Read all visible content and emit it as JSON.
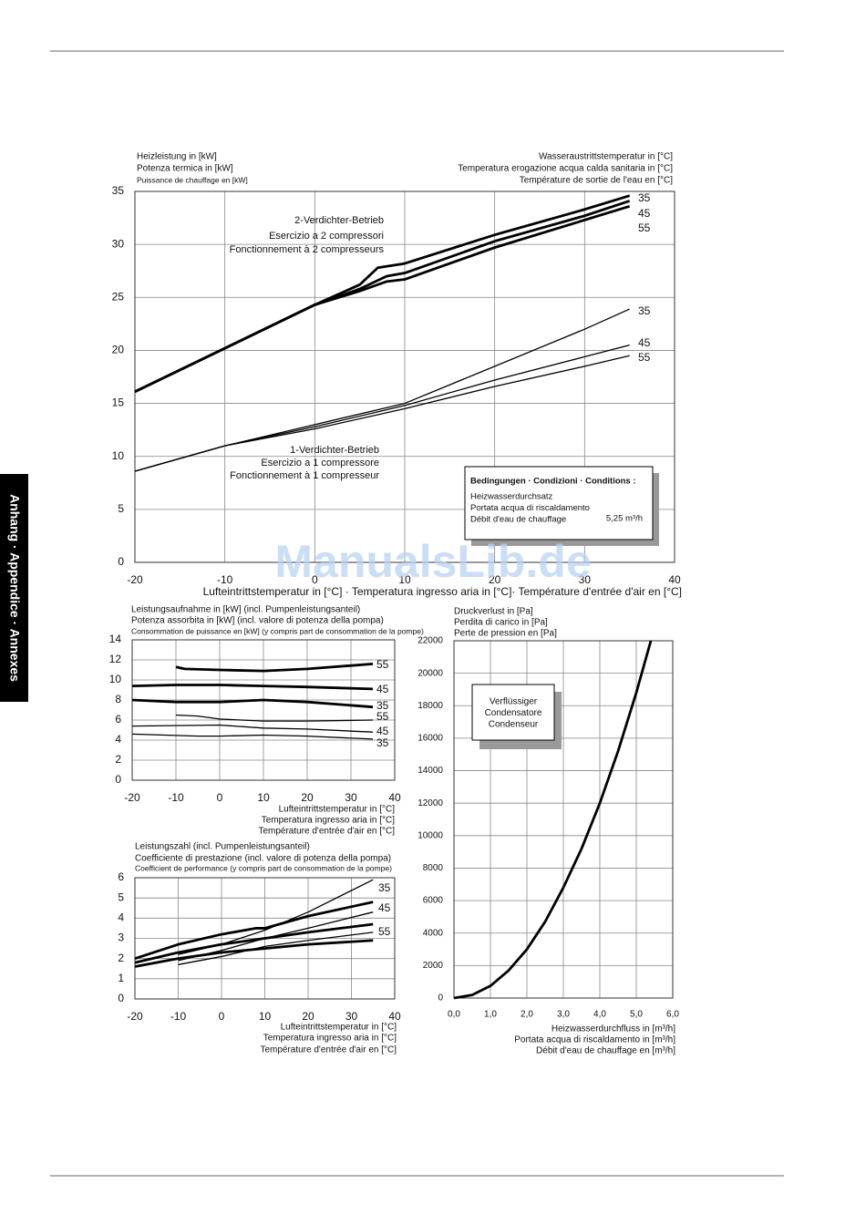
{
  "side_tab": "Anhang · Appendice · Annexes",
  "watermark": "ManualsLib.de",
  "chart_data": [
    {
      "type": "line",
      "y_label": [
        "Heizleistung in [kW]",
        "Potenza termica in [kW]",
        "Puissance de chauffage en [kW]"
      ],
      "legend_title": [
        "Wasseraustrittstemperatur in [°C]",
        "Temperatura erogazione acqua calda sanitaria in [°C]",
        "Température de sortie de l'eau en [°C]"
      ],
      "x_label": [
        "Lufteintrittstemperatur in [°C] · Temperatura ingresso aria in [°C]· Température d'entrée d'air en [°C]"
      ],
      "annotations": [
        [
          "2-Verdichter-Betrieb",
          "Esercizio a 2 compressori",
          "Fonctionnement à 2 compresseurs"
        ],
        [
          "1-Verdichter-Betrieb",
          "Esercizio a 1 compressore",
          "Fonctionnement à 1 compresseur"
        ]
      ],
      "conditions": {
        "title": "Bedingungen · Condizioni · Conditions :",
        "lines": [
          "Heizwasserdurchsatz",
          " Portata acqua di riscaldamento",
          "Débit d'eau de chauffage"
        ],
        "value": "5,25 m³/h"
      },
      "xlim": [
        -20,
        40
      ],
      "xticks": [
        -20,
        -10,
        0,
        10,
        20,
        30,
        40
      ],
      "ylim": [
        0,
        35
      ],
      "yticks": [
        0,
        5,
        10,
        15,
        20,
        25,
        30,
        35
      ],
      "grid": true,
      "series": [
        {
          "name": "35",
          "line_width": 2.8,
          "x": [
            -20,
            -10,
            0,
            5,
            7,
            10,
            20,
            30,
            35
          ],
          "values": [
            16.1,
            20.2,
            24.3,
            26.2,
            27.8,
            28.2,
            30.9,
            33.3,
            34.6
          ]
        },
        {
          "name": "45",
          "line_width": 2.8,
          "x": [
            -20,
            -10,
            0,
            5,
            8,
            10,
            20,
            30,
            35
          ],
          "values": [
            16.1,
            20.2,
            24.3,
            25.8,
            27.0,
            27.3,
            30.3,
            32.7,
            34.1
          ]
        },
        {
          "name": "55",
          "line_width": 2.8,
          "x": [
            -20,
            -10,
            0,
            5,
            8,
            10,
            20,
            30,
            35
          ],
          "values": [
            16.1,
            20.2,
            24.3,
            25.6,
            26.5,
            26.7,
            29.7,
            32.3,
            33.6
          ]
        },
        {
          "name": "35",
          "line_width": 1.3,
          "x": [
            -20,
            -10,
            0,
            10,
            20,
            30,
            35
          ],
          "values": [
            8.6,
            11.0,
            13.0,
            15.0,
            18.5,
            22.0,
            23.9
          ]
        },
        {
          "name": "45",
          "line_width": 1.3,
          "x": [
            -20,
            -10,
            0,
            10,
            20,
            30,
            35
          ],
          "values": [
            8.6,
            11.0,
            12.8,
            14.8,
            17.2,
            19.4,
            20.5
          ]
        },
        {
          "name": "55",
          "line_width": 1.3,
          "x": [
            -20,
            -10,
            0,
            10,
            20,
            30,
            35
          ],
          "values": [
            8.6,
            11.0,
            12.6,
            14.5,
            16.6,
            18.5,
            19.5
          ]
        }
      ]
    },
    {
      "type": "line",
      "y_label": [
        "Leistungsaufnahme in [kW] (incl. Pumpenleistungsanteil)",
        "Potenza assorbita in [kW] (incl. valore di potenza della pompa)",
        "Consommation de puissance en [kW] (y compris part de consommation de la pompe)"
      ],
      "x_label": [
        "Lufteintrittstemperatur in [°C]",
        "Temperatura ingresso aria in [°C]",
        "Température d'entrée d'air en [°C]"
      ],
      "xlim": [
        -20,
        40
      ],
      "xticks": [
        -20,
        -10,
        0,
        10,
        20,
        30,
        40
      ],
      "ylim": [
        0,
        14
      ],
      "yticks": [
        0,
        2,
        4,
        6,
        8,
        10,
        12,
        14
      ],
      "grid": true,
      "series": [
        {
          "name": "55",
          "line_width": 2.8,
          "x": [
            -10,
            -8,
            0,
            10,
            20,
            35
          ],
          "values": [
            11.3,
            11.1,
            11.0,
            10.9,
            11.1,
            11.6
          ]
        },
        {
          "name": "45",
          "line_width": 2.8,
          "x": [
            -20,
            -10,
            0,
            10,
            20,
            35
          ],
          "values": [
            9.4,
            9.5,
            9.5,
            9.4,
            9.3,
            9.1
          ]
        },
        {
          "name": "35",
          "line_width": 2.8,
          "x": [
            -20,
            -10,
            0,
            10,
            20,
            35
          ],
          "values": [
            8.0,
            7.8,
            7.8,
            8.0,
            7.8,
            7.3
          ]
        },
        {
          "name": "55",
          "line_width": 1.3,
          "x": [
            -10,
            -5,
            0,
            10,
            20,
            35
          ],
          "values": [
            6.5,
            6.4,
            6.1,
            5.9,
            5.9,
            6.0
          ]
        },
        {
          "name": "45",
          "line_width": 1.3,
          "x": [
            -20,
            0,
            10,
            20,
            35
          ],
          "values": [
            5.4,
            5.5,
            5.2,
            5.1,
            4.8
          ]
        },
        {
          "name": "35",
          "line_width": 1.3,
          "x": [
            -20,
            -5,
            0,
            10,
            20,
            35
          ],
          "values": [
            4.6,
            4.4,
            4.4,
            4.5,
            4.4,
            4.1
          ]
        }
      ]
    },
    {
      "type": "line",
      "y_label": [
        "Leistungszahl (incl. Pumpenleistungsanteil)",
        "Coefficiente di prestazione (incl. valore di potenza della pompa)",
        "Coefficient de performance (y compris part de consommation de la pompe)"
      ],
      "x_label": [
        "Lufteintrittstemperatur in [°C]",
        "Temperatura ingresso aria in [°C]",
        "Température d'entrée d'air en [°C]"
      ],
      "xlim": [
        -20,
        40
      ],
      "xticks": [
        -20,
        -10,
        0,
        10,
        20,
        30,
        40
      ],
      "ylim": [
        0,
        6
      ],
      "yticks": [
        0,
        1,
        2,
        3,
        4,
        5,
        6
      ],
      "grid": true,
      "series": [
        {
          "name": "35",
          "line_width": 1.3,
          "x": [
            -10,
            0,
            10,
            20,
            35
          ],
          "values": [
            2.2,
            2.7,
            3.4,
            4.3,
            5.9
          ]
        },
        {
          "name": "45",
          "line_width": 2.8,
          "x": [
            -20,
            -10,
            0,
            8,
            10,
            20,
            35
          ],
          "values": [
            2.0,
            2.7,
            3.2,
            3.5,
            3.5,
            4.1,
            4.8
          ]
        },
        {
          "line_width": 1.3,
          "x": [
            -10,
            0,
            10,
            20,
            35
          ],
          "values": [
            1.9,
            2.4,
            3.0,
            3.5,
            4.3
          ]
        },
        {
          "line_width": 2.8,
          "x": [
            -20,
            -10,
            0,
            10,
            20,
            35
          ],
          "values": [
            1.8,
            2.3,
            2.7,
            3.0,
            3.3,
            3.7
          ]
        },
        {
          "name": "55",
          "line_width": 1.3,
          "x": [
            -10,
            0,
            10,
            20,
            35
          ],
          "values": [
            1.7,
            2.1,
            2.6,
            2.9,
            3.3
          ]
        },
        {
          "line_width": 2.8,
          "x": [
            -20,
            -10,
            0,
            10,
            20,
            35
          ],
          "values": [
            1.6,
            2.0,
            2.3,
            2.5,
            2.7,
            2.9
          ]
        }
      ]
    },
    {
      "type": "line",
      "y_label": [
        "Druckverlust in [Pa]",
        "Perdita di carico in [Pa]",
        "Perte de pression en [Pa]"
      ],
      "x_label": [
        "Heizwasserdurchfluss in [m³/h]",
        "Portata acqua di riscaldamento in [m³/h]",
        "Débit d'eau de chauffage en [m³/h]"
      ],
      "box": [
        "Verflüssiger",
        "Condensatore",
        "Condenseur"
      ],
      "xlim": [
        0,
        6
      ],
      "xticks": [
        {
          "value": 0,
          "label": "0,0"
        },
        {
          "value": 1,
          "label": "1,0"
        },
        {
          "value": 2,
          "label": "2,0"
        },
        {
          "value": 3,
          "label": "3,0"
        },
        {
          "value": 4,
          "label": "4,0"
        },
        {
          "value": 5,
          "label": "5,0"
        },
        {
          "value": 6,
          "label": "6,0"
        }
      ],
      "ylim": [
        0,
        22000
      ],
      "yticks": [
        0,
        2000,
        4000,
        6000,
        8000,
        10000,
        12000,
        14000,
        16000,
        18000,
        20000,
        22000
      ],
      "grid": true,
      "series": [
        {
          "line_width": 2.8,
          "x": [
            0,
            0.5,
            1.0,
            1.5,
            2.0,
            2.5,
            3.0,
            3.5,
            4.0,
            4.5,
            5.0,
            5.4
          ],
          "values": [
            0,
            190,
            750,
            1700,
            3000,
            4700,
            6800,
            9200,
            12000,
            15200,
            18800,
            22000
          ]
        }
      ]
    }
  ]
}
